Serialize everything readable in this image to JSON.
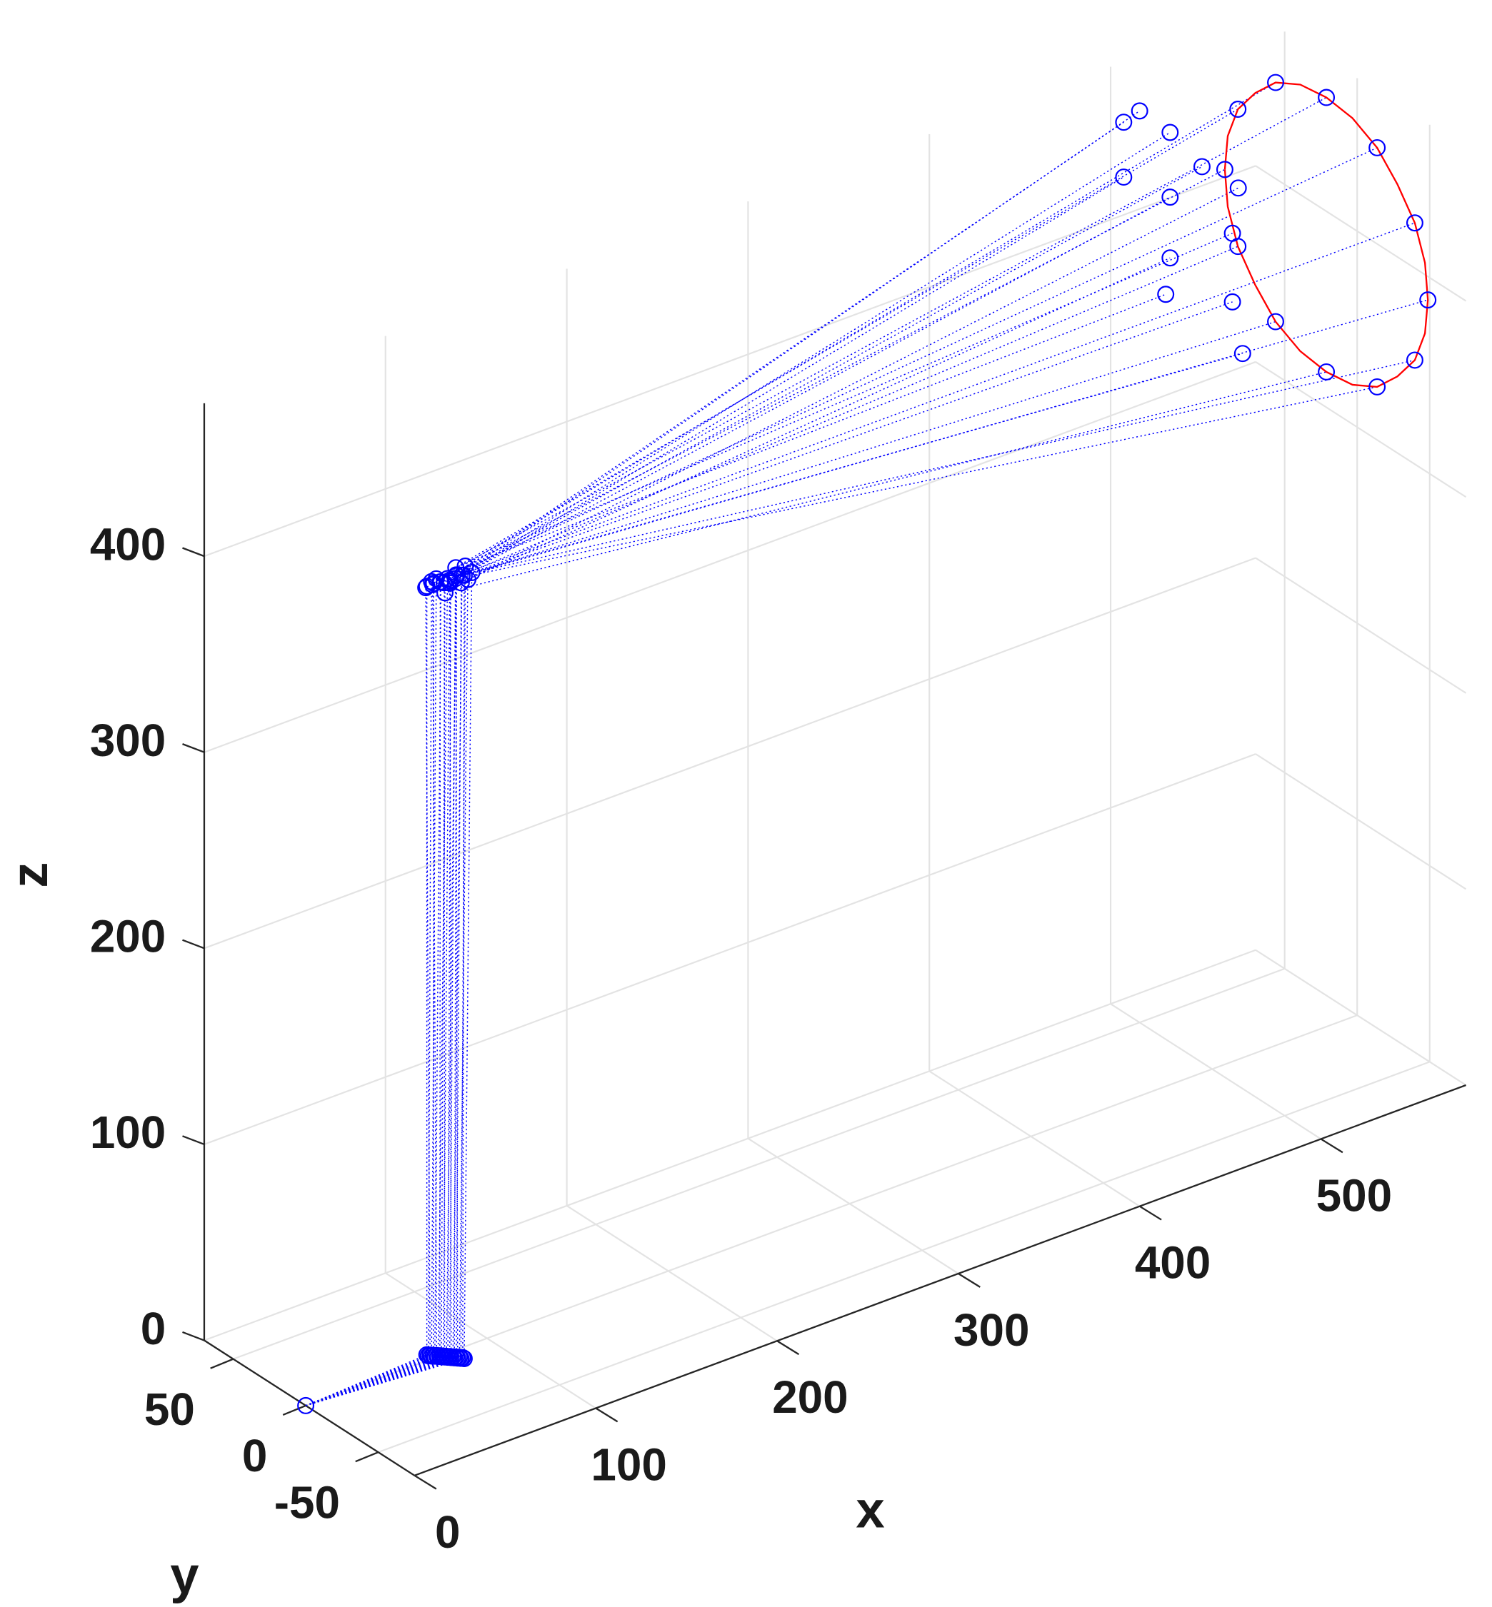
{
  "chart_data": {
    "type": "scatter3d",
    "xlabel": "x",
    "ylabel": "y",
    "zlabel": "z",
    "xlim": [
      0,
      580
    ],
    "ylim": [
      -75,
      70
    ],
    "zlim": [
      0,
      478
    ],
    "xticks": [
      0,
      100,
      200,
      300,
      400,
      500
    ],
    "yticks": [
      -50,
      0,
      50
    ],
    "zticks": [
      0,
      100,
      200,
      300,
      400
    ],
    "grid": true,
    "marker": "circle",
    "rays": {
      "color": "#0000ff",
      "style": "dotted"
    },
    "series": [
      {
        "color": "#0000ff",
        "x": [
          0
        ],
        "y": [
          0
        ],
        "z": [
          0
        ]
      },
      {
        "color": "#0000ff",
        "x": [
          70,
          70,
          71,
          71,
          72,
          72,
          73,
          73,
          74,
          74,
          75,
          75,
          76,
          76,
          77,
          77,
          78,
          78,
          79,
          79,
          80,
          80,
          81,
          81
        ],
        "y": [
          4,
          3,
          3,
          2,
          2,
          1,
          1,
          0,
          0,
          -1,
          -1,
          -2,
          -2,
          -3,
          -3,
          -4,
          -4,
          -5,
          -5,
          -6,
          -6,
          -7,
          -7,
          -8
        ],
        "z": [
          0,
          0,
          0,
          0,
          0,
          0,
          0,
          0,
          0,
          0,
          0,
          0,
          0,
          0,
          0,
          0,
          0,
          0,
          0,
          0,
          0,
          0,
          0,
          0
        ]
      },
      {
        "color": "#0000ff",
        "x": [
          70,
          71,
          71,
          72,
          73,
          73,
          74,
          75,
          75,
          76,
          77,
          78,
          79,
          80,
          81,
          82,
          83,
          84,
          85,
          86,
          87,
          88,
          89,
          90
        ],
        "y": [
          4,
          2,
          6,
          0,
          3,
          -2,
          5,
          -4,
          1,
          -1,
          -3,
          2,
          -5,
          0,
          -2,
          3,
          -4,
          1,
          -1,
          4,
          -3,
          0,
          2,
          -2
        ],
        "z": [
          392,
          395,
          390,
          397,
          393,
          396,
          391,
          398,
          394,
          389,
          396,
          392,
          399,
          393,
          395,
          390,
          397,
          394,
          391,
          396,
          393,
          398,
          392,
          395
        ]
      },
      {
        "color": "#0000ff",
        "x": [
          563,
          563,
          563,
          563,
          563,
          563,
          563,
          563,
          563,
          563,
          563,
          563,
          500,
          500,
          500,
          500,
          500,
          500,
          500,
          500,
          500,
          500,
          500,
          500
        ],
        "y": [
          70,
          61,
          35,
          0,
          -35,
          -61,
          -70,
          -61,
          -35,
          0,
          35,
          61,
          61,
          50,
          29,
          61,
          29,
          7,
          -18,
          -14,
          29,
          32,
          -14,
          -21
        ],
        "z": [
          404,
          439,
          465,
          474,
          465,
          439,
          404,
          369,
          343,
          334,
          343,
          369,
          454,
          465,
          464,
          426,
          431,
          457,
          458,
          433,
          400,
          380,
          398,
          375
        ]
      }
    ],
    "lines": [
      {
        "color": "#ff0000",
        "x": [
          563,
          563,
          563,
          563,
          563,
          563,
          563,
          563,
          563,
          563,
          563,
          563,
          563,
          563,
          563,
          563,
          563,
          563,
          563,
          563,
          563,
          563,
          563,
          563,
          563
        ],
        "y": [
          70,
          68,
          61,
          49,
          35,
          18,
          0,
          -18,
          -35,
          -49,
          -61,
          -68,
          -70,
          -68,
          -61,
          -49,
          -35,
          -18,
          0,
          18,
          35,
          49,
          61,
          68,
          70
        ],
        "z": [
          404,
          422,
          439,
          453,
          465,
          472,
          474,
          472,
          465,
          453,
          439,
          422,
          404,
          386,
          369,
          355,
          343,
          336,
          334,
          336,
          343,
          355,
          369,
          386,
          404
        ]
      }
    ]
  }
}
